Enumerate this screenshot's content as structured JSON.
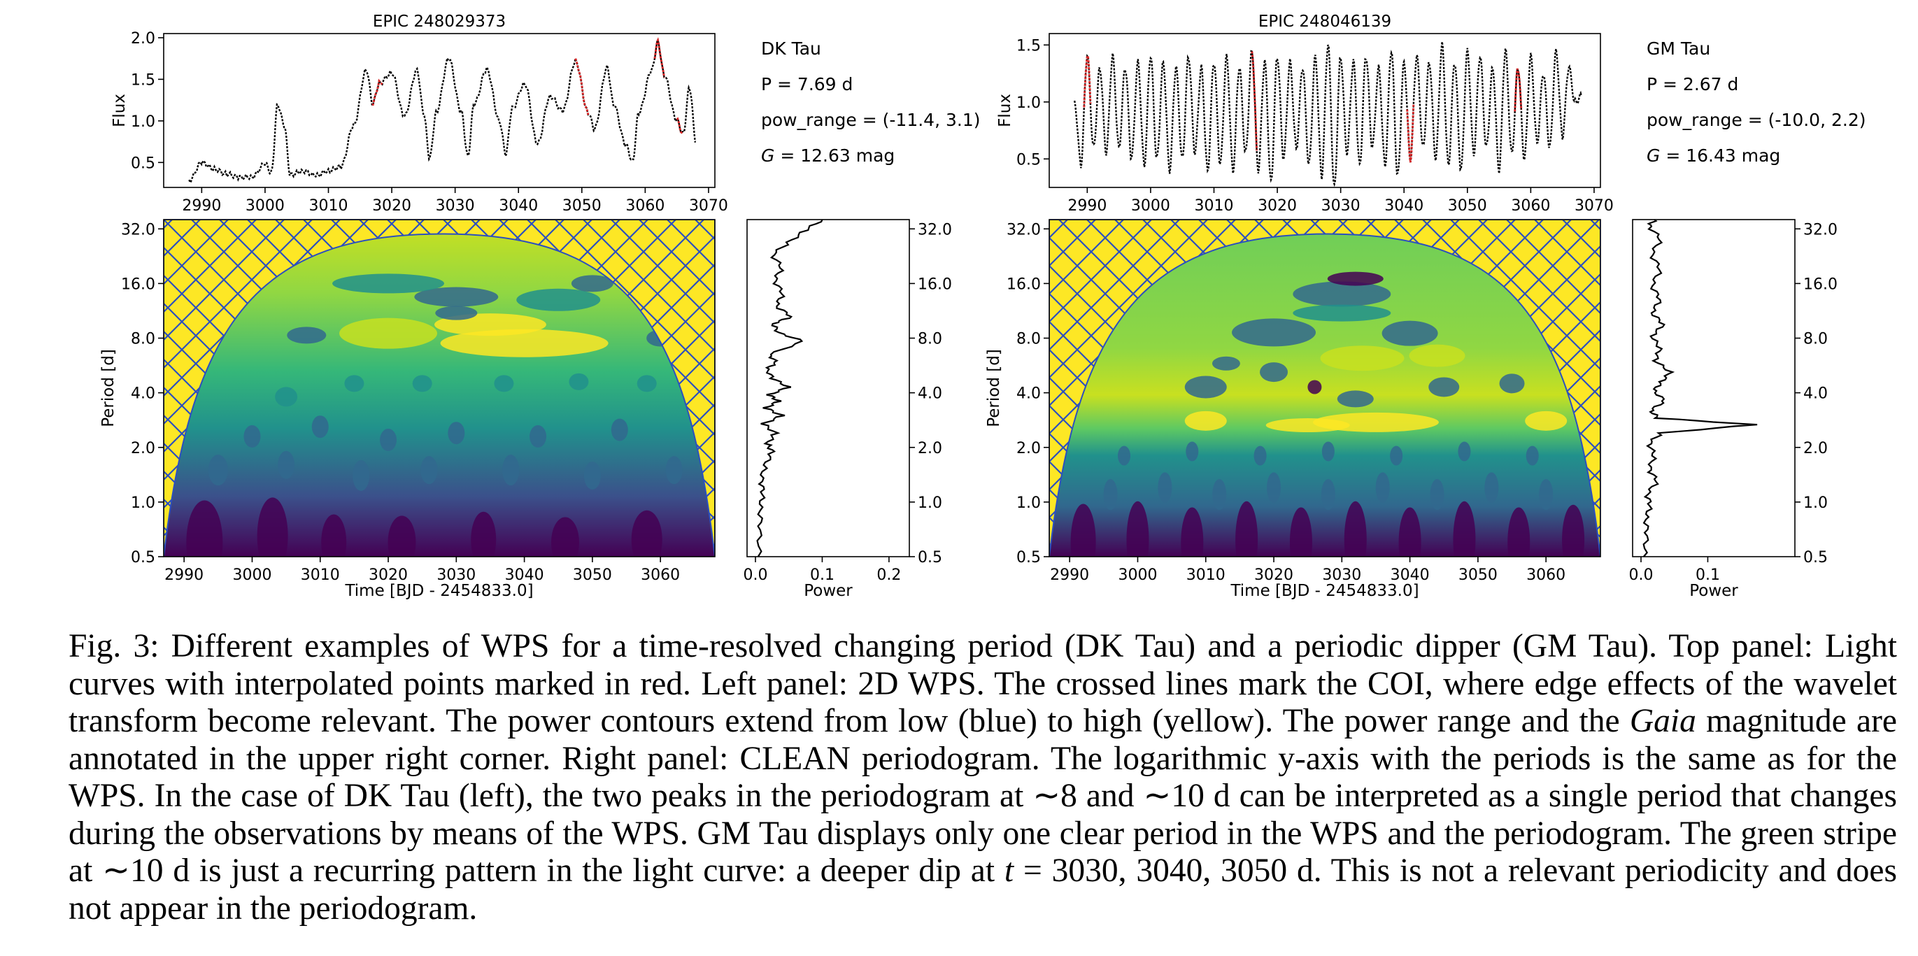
{
  "panels": [
    {
      "title": "EPIC 248029373",
      "star_name": "DK Tau",
      "period_text": "P = 7.69 d",
      "pow_range_text": "pow_range = (-11.4, 3.1)",
      "mag_letter": "G",
      "mag_rest": " = 12.63 mag",
      "lc": {
        "ylabel": "Flux",
        "xlim": [
          2984,
          3071
        ],
        "ylim": [
          0.2,
          2.05
        ],
        "xticks": [
          "2990",
          "3000",
          "3010",
          "3020",
          "3030",
          "3040",
          "3050",
          "3060",
          "3070"
        ],
        "yticks": [
          "0.5",
          "1.0",
          "1.5",
          "2.0"
        ],
        "curve_points": [
          [
            2988,
            0.28
          ],
          [
            2990,
            0.5
          ],
          [
            2992,
            0.42
          ],
          [
            2994,
            0.36
          ],
          [
            2996,
            0.32
          ],
          [
            2998,
            0.33
          ],
          [
            3000,
            0.48
          ],
          [
            3001,
            0.38
          ],
          [
            3002,
            1.2
          ],
          [
            3003,
            0.95
          ],
          [
            3004,
            0.35
          ],
          [
            3006,
            0.4
          ],
          [
            3008,
            0.34
          ],
          [
            3010,
            0.4
          ],
          [
            3012,
            0.45
          ],
          [
            3014,
            0.95
          ],
          [
            3016,
            1.62
          ],
          [
            3017,
            1.2
          ],
          [
            3018,
            1.45
          ],
          [
            3020,
            1.58
          ],
          [
            3022,
            1.05
          ],
          [
            3024,
            1.62
          ],
          [
            3025,
            1.1
          ],
          [
            3026,
            0.55
          ],
          [
            3027,
            1.1
          ],
          [
            3029,
            1.75
          ],
          [
            3031,
            1.1
          ],
          [
            3032,
            0.58
          ],
          [
            3033,
            1.2
          ],
          [
            3035,
            1.62
          ],
          [
            3037,
            1.0
          ],
          [
            3038,
            0.6
          ],
          [
            3039,
            1.15
          ],
          [
            3041,
            1.45
          ],
          [
            3043,
            0.72
          ],
          [
            3045,
            1.3
          ],
          [
            3047,
            1.12
          ],
          [
            3049,
            1.72
          ],
          [
            3051,
            1.1
          ],
          [
            3052,
            0.9
          ],
          [
            3054,
            1.65
          ],
          [
            3055,
            1.2
          ],
          [
            3057,
            0.7
          ],
          [
            3058,
            0.52
          ],
          [
            3059,
            1.1
          ],
          [
            3061,
            1.6
          ],
          [
            3062,
            1.95
          ],
          [
            3063,
            1.55
          ],
          [
            3065,
            1.0
          ],
          [
            3066,
            0.85
          ],
          [
            3067,
            1.4
          ],
          [
            3068,
            0.75
          ]
        ],
        "interpolated_segments": [
          [
            3017,
            3018.5
          ],
          [
            3049,
            3051
          ],
          [
            3061.5,
            3063
          ],
          [
            3065,
            3066
          ]
        ]
      },
      "wps": {
        "ylabel": "Period [d]",
        "xlabel": "Time [BJD - 2454833.0]",
        "xlim": [
          2987,
          3068
        ],
        "period_range": [
          0.5,
          36
        ],
        "coi_peak": [
          3028,
          30
        ],
        "xticks": [
          "2990",
          "3000",
          "3010",
          "3020",
          "3030",
          "3040",
          "3050",
          "3060"
        ],
        "yticks": [
          "0.5",
          "1.0",
          "2.0",
          "4.0",
          "8.0",
          "16.0",
          "32.0"
        ]
      },
      "periodogram": {
        "xlabel": "Power",
        "xlim": [
          0,
          0.22
        ],
        "xticks": [
          "0.0",
          "0.1",
          "0.2"
        ],
        "yticks": [
          "0.5",
          "1.0",
          "2.0",
          "4.0",
          "8.0",
          "16.0",
          "32.0"
        ],
        "points": [
          [
            0.004,
            0.5
          ],
          [
            0.008,
            0.7
          ],
          [
            0.006,
            0.9
          ],
          [
            0.012,
            1.1
          ],
          [
            0.008,
            1.3
          ],
          [
            0.015,
            1.6
          ],
          [
            0.025,
            1.9
          ],
          [
            0.018,
            2.1
          ],
          [
            0.03,
            2.4
          ],
          [
            0.012,
            2.7
          ],
          [
            0.04,
            3.0
          ],
          [
            0.015,
            3.3
          ],
          [
            0.035,
            3.6
          ],
          [
            0.02,
            3.9
          ],
          [
            0.05,
            4.3
          ],
          [
            0.025,
            4.8
          ],
          [
            0.018,
            5.4
          ],
          [
            0.03,
            5.9
          ],
          [
            0.022,
            6.5
          ],
          [
            0.07,
            7.7
          ],
          [
            0.035,
            8.6
          ],
          [
            0.025,
            9.6
          ],
          [
            0.055,
            10.5
          ],
          [
            0.03,
            12.0
          ],
          [
            0.042,
            14.0
          ],
          [
            0.028,
            16.5
          ],
          [
            0.04,
            19.5
          ],
          [
            0.025,
            23.0
          ],
          [
            0.05,
            27.0
          ],
          [
            0.075,
            31.5
          ],
          [
            0.1,
            36.0
          ]
        ]
      }
    },
    {
      "title": "EPIC 248046139",
      "star_name": "GM Tau",
      "period_text": "P = 2.67 d",
      "pow_range_text": "pow_range = (-10.0, 2.2)",
      "mag_letter": "G",
      "mag_rest": " = 16.43 mag",
      "lc": {
        "ylabel": "Flux",
        "xlim": [
          2984,
          3071
        ],
        "ylim": [
          0.25,
          1.6
        ],
        "xticks": [
          "2990",
          "3000",
          "3010",
          "3020",
          "3030",
          "3040",
          "3050",
          "3060",
          "3070"
        ],
        "yticks": [
          "0.5",
          "1.0",
          "1.5"
        ],
        "curve_points": [
          [
            2988,
            1.0
          ],
          [
            2989,
            0.45
          ],
          [
            2990,
            1.4
          ],
          [
            2991,
            0.6
          ],
          [
            2992,
            1.3
          ],
          [
            2993,
            0.55
          ],
          [
            2994,
            1.4
          ],
          [
            2995,
            0.6
          ],
          [
            2996,
            1.3
          ],
          [
            2997,
            0.5
          ],
          [
            2998,
            1.35
          ],
          [
            2999,
            0.45
          ],
          [
            3000,
            1.4
          ],
          [
            3001,
            0.5
          ],
          [
            3002,
            1.35
          ],
          [
            3003,
            0.4
          ],
          [
            3004,
            1.3
          ],
          [
            3005,
            0.5
          ],
          [
            3006,
            1.4
          ],
          [
            3007,
            0.55
          ],
          [
            3008,
            1.3
          ],
          [
            3009,
            0.4
          ],
          [
            3010,
            1.35
          ],
          [
            3011,
            0.45
          ],
          [
            3012,
            1.4
          ],
          [
            3013,
            0.4
          ],
          [
            3014,
            1.3
          ],
          [
            3015,
            0.55
          ],
          [
            3016,
            1.45
          ],
          [
            3017,
            0.4
          ],
          [
            3018,
            1.35
          ],
          [
            3019,
            0.3
          ],
          [
            3020,
            1.4
          ],
          [
            3021,
            0.5
          ],
          [
            3022,
            1.35
          ],
          [
            3023,
            0.6
          ],
          [
            3024,
            1.3
          ],
          [
            3025,
            0.45
          ],
          [
            3026,
            1.4
          ],
          [
            3027,
            0.35
          ],
          [
            3028,
            1.5
          ],
          [
            3029,
            0.25
          ],
          [
            3030,
            1.4
          ],
          [
            3031,
            0.55
          ],
          [
            3032,
            1.35
          ],
          [
            3033,
            0.45
          ],
          [
            3034,
            1.4
          ],
          [
            3035,
            0.6
          ],
          [
            3036,
            1.3
          ],
          [
            3037,
            0.45
          ],
          [
            3038,
            1.45
          ],
          [
            3039,
            0.35
          ],
          [
            3040,
            1.35
          ],
          [
            3041,
            0.5
          ],
          [
            3042,
            1.4
          ],
          [
            3043,
            0.6
          ],
          [
            3044,
            1.35
          ],
          [
            3045,
            0.5
          ],
          [
            3046,
            1.5
          ],
          [
            3047,
            0.45
          ],
          [
            3048,
            1.35
          ],
          [
            3049,
            0.4
          ],
          [
            3050,
            1.45
          ],
          [
            3051,
            0.55
          ],
          [
            3052,
            1.4
          ],
          [
            3053,
            0.6
          ],
          [
            3054,
            1.3
          ],
          [
            3055,
            0.4
          ],
          [
            3056,
            1.45
          ],
          [
            3057,
            0.55
          ],
          [
            3058,
            1.3
          ],
          [
            3059,
            0.5
          ],
          [
            3060,
            1.4
          ],
          [
            3061,
            0.65
          ],
          [
            3062,
            1.25
          ],
          [
            3063,
            0.6
          ],
          [
            3064,
            1.45
          ],
          [
            3065,
            0.7
          ],
          [
            3066,
            1.3
          ],
          [
            3067,
            1.0
          ],
          [
            3068,
            1.05
          ]
        ],
        "interpolated_segments": [
          [
            2989.5,
            2990.5
          ],
          [
            3016,
            3016.8
          ],
          [
            3040.5,
            3041.5
          ],
          [
            3057.5,
            3058.5
          ]
        ]
      },
      "wps": {
        "ylabel": "Period [d]",
        "xlabel": "Time [BJD - 2454833.0]",
        "xlim": [
          2987,
          3068
        ],
        "period_range": [
          0.5,
          36
        ],
        "coi_peak": [
          3028,
          30
        ],
        "xticks": [
          "2990",
          "3000",
          "3010",
          "3020",
          "3030",
          "3040",
          "3050",
          "3060"
        ],
        "yticks": [
          "0.5",
          "1.0",
          "2.0",
          "4.0",
          "8.0",
          "16.0",
          "32.0"
        ]
      },
      "periodogram": {
        "xlabel": "Power",
        "xlim": [
          0,
          0.22
        ],
        "xticks": [
          "0.0",
          "0.1"
        ],
        "yticks": [
          "0.5",
          "1.0",
          "2.0",
          "4.0",
          "8.0",
          "16.0",
          "32.0"
        ],
        "points": [
          [
            0.004,
            0.5
          ],
          [
            0.01,
            0.65
          ],
          [
            0.006,
            0.8
          ],
          [
            0.015,
            0.95
          ],
          [
            0.008,
            1.1
          ],
          [
            0.025,
            1.3
          ],
          [
            0.012,
            1.5
          ],
          [
            0.02,
            1.8
          ],
          [
            0.012,
            2.1
          ],
          [
            0.03,
            2.4
          ],
          [
            0.17,
            2.67
          ],
          [
            0.025,
            2.9
          ],
          [
            0.015,
            3.2
          ],
          [
            0.035,
            3.6
          ],
          [
            0.02,
            4.1
          ],
          [
            0.03,
            4.6
          ],
          [
            0.045,
            5.2
          ],
          [
            0.02,
            6.0
          ],
          [
            0.03,
            7.0
          ],
          [
            0.015,
            8.2
          ],
          [
            0.035,
            9.5
          ],
          [
            0.015,
            11.0
          ],
          [
            0.03,
            13.0
          ],
          [
            0.015,
            15.5
          ],
          [
            0.03,
            19.0
          ],
          [
            0.015,
            23.0
          ],
          [
            0.03,
            28.0
          ],
          [
            0.012,
            33.0
          ],
          [
            0.02,
            36.0
          ]
        ]
      }
    }
  ],
  "caption": {
    "part1": "Fig. 3: Different examples of WPS for a time-resolved changing period (DK Tau) and a periodic dipper (GM Tau). Top panel: Light curves with interpolated points marked in red. Left panel: 2D WPS. The crossed lines mark the COI, where edge effects of the wavelet transform become relevant. The power contours extend from low (blue) to high (yellow). The power range and the ",
    "gaia": "Gaia",
    "part2": " magnitude are annotated in the upper right corner. Right panel: CLEAN periodogram. The logarithmic y-axis with the periods is the same as for the WPS. In the case of DK Tau (left), the two peaks in the periodogram at ∼8 and ∼10 d can be interpreted as a single period that changes during the observations by means of the WPS. GM Tau displays only one clear period in the WPS and the periodogram. The green stripe at ∼10 d is just a recurring pattern in the light curve: a deeper dip at ",
    "t_var": "t",
    "part3": " = 3030, 3040, 3050 d. This is not a relevant periodicity and does not appear in the periodogram."
  },
  "colors": {
    "viridis_low": "#440154",
    "viridis_midlow": "#31688e",
    "viridis_mid": "#35b779",
    "viridis_midhigh": "#90d743",
    "viridis_high": "#fde725",
    "coi_hatch": "#2c4fbf",
    "interpolated": "#d62728",
    "curve": "#000000"
  }
}
